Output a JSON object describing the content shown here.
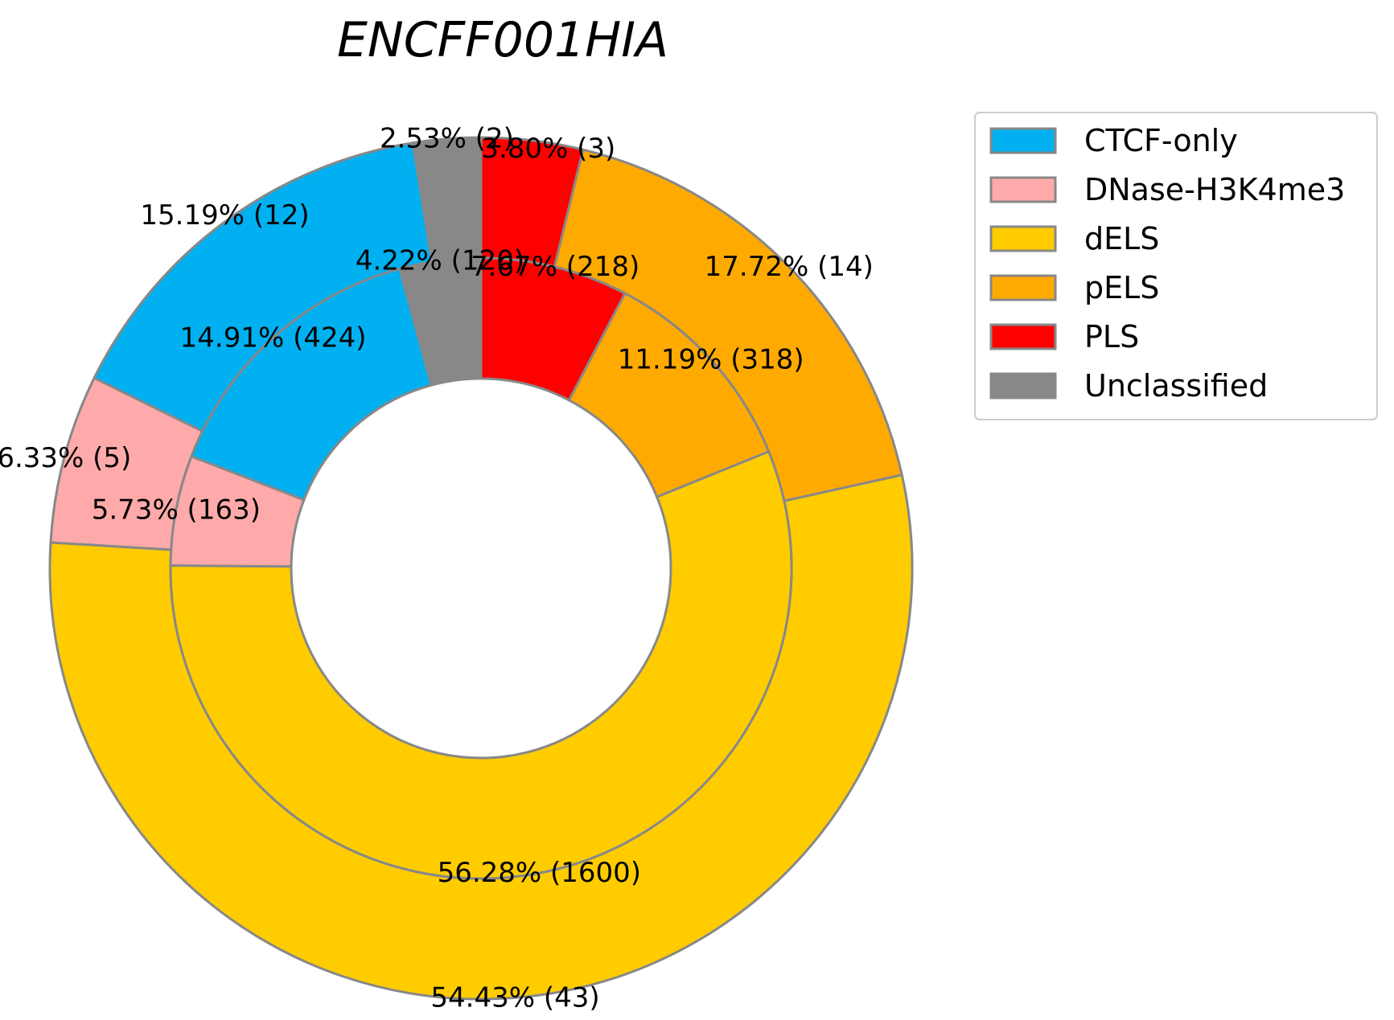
{
  "chart_data": {
    "type": "pie",
    "style": "nested-donut",
    "title": "ENCFF001HIA",
    "categories": [
      "CTCF-only",
      "DNase-H3K4me3",
      "dELS",
      "pELS",
      "PLS",
      "Unclassified"
    ],
    "colors": {
      "CTCF-only": "#00b0f0",
      "DNase-H3K4me3": "#ffaaaa",
      "dELS": "#ffcc00",
      "pELS": "#ffaa00",
      "PLS": "#ff0000",
      "Unclassified": "#888888"
    },
    "edge_color": "#888888",
    "start_angle_deg": 90,
    "direction": "counterclockwise",
    "series": [
      {
        "ring": "outer",
        "slices": [
          {
            "category": "Unclassified",
            "percent": 2.53,
            "count": 2,
            "label": "2.53% (2)"
          },
          {
            "category": "CTCF-only",
            "percent": 15.19,
            "count": 12,
            "label": "15.19% (12)"
          },
          {
            "category": "DNase-H3K4me3",
            "percent": 6.33,
            "count": 5,
            "label": "6.33% (5)"
          },
          {
            "category": "dELS",
            "percent": 54.43,
            "count": 43,
            "label": "54.43% (43)"
          },
          {
            "category": "pELS",
            "percent": 17.72,
            "count": 14,
            "label": "17.72% (14)"
          },
          {
            "category": "PLS",
            "percent": 3.8,
            "count": 3,
            "label": "3.80% (3)"
          }
        ]
      },
      {
        "ring": "inner",
        "slices": [
          {
            "category": "Unclassified",
            "percent": 4.22,
            "count": 120,
            "label": "4.22% (120)"
          },
          {
            "category": "CTCF-only",
            "percent": 14.91,
            "count": 424,
            "label": "14.91% (424)"
          },
          {
            "category": "DNase-H3K4me3",
            "percent": 5.73,
            "count": 163,
            "label": "5.73% (163)"
          },
          {
            "category": "dELS",
            "percent": 56.28,
            "count": 1600,
            "label": "56.28% (1600)"
          },
          {
            "category": "pELS",
            "percent": 11.19,
            "count": 318,
            "label": "11.19% (318)"
          },
          {
            "category": "PLS",
            "percent": 7.67,
            "count": 218,
            "label": "7.67% (218)"
          }
        ]
      }
    ],
    "legend": {
      "placement": "upper-right",
      "entries": [
        "CTCF-only",
        "DNase-H3K4me3",
        "dELS",
        "pELS",
        "PLS",
        "Unclassified"
      ]
    }
  }
}
